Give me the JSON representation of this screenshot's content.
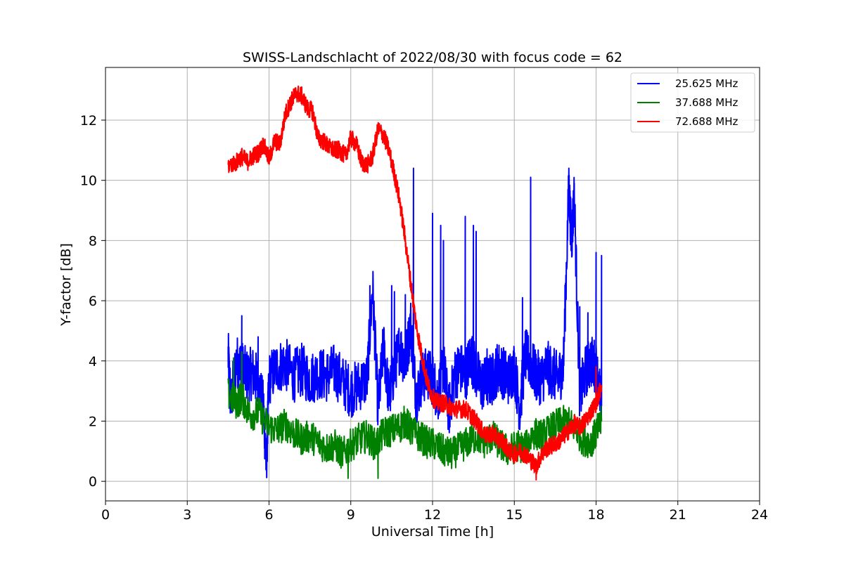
{
  "chart_data": {
    "type": "line",
    "title": "SWISS-Landschlacht of 2022/08/30 with focus code = 62",
    "xlabel": "Universal Time [h]",
    "ylabel": "Y-factor [dB]",
    "xlim": [
      0,
      24
    ],
    "ylim": [
      -0.65,
      13.75
    ],
    "xticks": [
      0,
      3,
      6,
      9,
      12,
      15,
      18,
      21,
      24
    ],
    "yticks": [
      0,
      2,
      4,
      6,
      8,
      10,
      12
    ],
    "grid": true,
    "legend": "top-right",
    "series": [
      {
        "name": "25.625 MHz",
        "color": "#0000ff",
        "x": [
          4.5,
          4.6,
          4.8,
          5.0,
          5.2,
          5.4,
          5.6,
          5.8,
          5.9,
          6.0,
          6.3,
          6.6,
          6.9,
          7.2,
          7.5,
          7.8,
          8.1,
          8.4,
          8.7,
          9.0,
          9.3,
          9.6,
          9.8,
          10.0,
          10.2,
          10.4,
          10.6,
          10.8,
          11.0,
          11.2,
          11.4,
          11.6,
          11.8,
          12.0,
          12.2,
          12.4,
          12.6,
          12.8,
          13.0,
          13.2,
          13.4,
          13.6,
          13.8,
          14.0,
          14.2,
          14.4,
          14.6,
          14.8,
          15.0,
          15.2,
          15.4,
          15.6,
          15.8,
          16.0,
          16.2,
          16.4,
          16.6,
          16.8,
          17.0,
          17.1,
          17.2,
          17.4,
          17.6,
          17.8,
          18.0,
          18.2
        ],
        "y": [
          4.2,
          2.6,
          4.0,
          3.8,
          3.5,
          3.6,
          3.3,
          2.4,
          0.5,
          3.4,
          3.8,
          3.9,
          3.5,
          3.7,
          3.4,
          3.6,
          3.5,
          3.7,
          3.3,
          3.0,
          3.2,
          3.4,
          6.5,
          2.4,
          4.5,
          2.8,
          3.7,
          4.5,
          3.9,
          5.2,
          2.8,
          3.4,
          3.6,
          3.4,
          2.8,
          3.9,
          2.3,
          3.5,
          3.8,
          3.5,
          4.2,
          3.6,
          3.2,
          3.3,
          3.4,
          3.8,
          3.6,
          3.4,
          3.8,
          2.4,
          4.2,
          3.9,
          3.5,
          3.4,
          3.8,
          3.6,
          3.4,
          3.8,
          9.8,
          8.0,
          9.5,
          2.8,
          3.6,
          4.0,
          3.8,
          2.5
        ],
        "spikes": [
          [
            5.0,
            5.5
          ],
          [
            5.6,
            4.8
          ],
          [
            5.9,
            0.5
          ],
          [
            9.7,
            6.5
          ],
          [
            10.5,
            6.5
          ],
          [
            10.6,
            6.3
          ],
          [
            11.0,
            6.2
          ],
          [
            11.3,
            10.4
          ],
          [
            12.0,
            8.9
          ],
          [
            12.3,
            8.5
          ],
          [
            12.4,
            8.0
          ],
          [
            13.2,
            8.8
          ],
          [
            13.5,
            8.5
          ],
          [
            13.6,
            8.3
          ],
          [
            14.0,
            4.4
          ],
          [
            15.3,
            6.1
          ],
          [
            15.6,
            10.1
          ],
          [
            17.0,
            10.4
          ],
          [
            17.2,
            9.9
          ],
          [
            17.4,
            5.8
          ],
          [
            17.7,
            5.6
          ],
          [
            18.0,
            7.6
          ],
          [
            18.2,
            7.5
          ]
        ]
      },
      {
        "name": "37.688 MHz",
        "color": "#008000",
        "x": [
          4.5,
          4.8,
          5.0,
          5.3,
          5.6,
          6.0,
          6.3,
          6.6,
          6.9,
          7.2,
          7.5,
          7.8,
          8.1,
          8.4,
          8.7,
          9.0,
          9.3,
          9.6,
          9.9,
          10.2,
          10.5,
          10.8,
          11.0,
          11.2,
          11.5,
          11.8,
          12.1,
          12.4,
          12.7,
          13.0,
          13.3,
          13.6,
          13.9,
          14.2,
          14.5,
          14.8,
          15.1,
          15.4,
          15.7,
          16.0,
          16.3,
          16.6,
          16.9,
          17.2,
          17.5,
          17.8,
          18.0,
          18.2
        ],
        "y": [
          2.9,
          2.6,
          2.8,
          2.2,
          2.3,
          1.8,
          1.7,
          1.9,
          1.6,
          1.4,
          1.5,
          1.3,
          1.1,
          1.2,
          0.9,
          1.2,
          1.4,
          1.5,
          1.2,
          1.6,
          1.7,
          1.8,
          2.0,
          1.7,
          1.5,
          1.3,
          1.2,
          1.0,
          0.9,
          1.1,
          1.3,
          1.5,
          1.3,
          1.5,
          1.2,
          1.0,
          1.2,
          1.1,
          1.6,
          1.5,
          1.7,
          1.9,
          2.0,
          1.8,
          1.4,
          1.3,
          1.6,
          2.0
        ],
        "spikes": [
          [
            4.7,
            4.1
          ],
          [
            5.0,
            4.3
          ],
          [
            8.9,
            0.1
          ],
          [
            10.0,
            0.1
          ]
        ]
      },
      {
        "name": "72.688 MHz",
        "color": "#ff0000",
        "x": [
          4.5,
          4.8,
          5.0,
          5.2,
          5.4,
          5.6,
          5.8,
          6.0,
          6.2,
          6.4,
          6.6,
          6.8,
          7.0,
          7.2,
          7.4,
          7.6,
          7.8,
          8.0,
          8.2,
          8.4,
          8.6,
          8.8,
          9.0,
          9.2,
          9.4,
          9.6,
          9.8,
          10.0,
          10.2,
          10.4,
          10.6,
          10.8,
          11.0,
          11.2,
          11.4,
          11.6,
          11.8,
          12.0,
          12.2,
          12.4,
          12.6,
          12.8,
          13.0,
          13.2,
          13.4,
          13.6,
          13.8,
          14.0,
          14.2,
          14.4,
          14.6,
          14.8,
          15.0,
          15.2,
          15.4,
          15.6,
          15.8,
          16.0,
          16.2,
          16.4,
          16.6,
          16.8,
          17.0,
          17.2,
          17.4,
          17.6,
          17.8,
          18.0,
          18.2
        ],
        "y": [
          10.5,
          10.6,
          10.8,
          10.6,
          10.8,
          10.9,
          11.2,
          10.7,
          11.3,
          11.2,
          12.2,
          12.6,
          12.9,
          12.8,
          12.4,
          12.3,
          11.4,
          11.3,
          11.1,
          11.0,
          11.0,
          10.8,
          11.4,
          11.2,
          10.6,
          10.5,
          10.8,
          11.7,
          11.5,
          11.0,
          10.2,
          9.3,
          8.0,
          6.6,
          5.2,
          4.2,
          3.3,
          2.8,
          2.6,
          2.6,
          2.5,
          2.4,
          2.4,
          2.4,
          2.2,
          2.0,
          1.7,
          1.5,
          1.6,
          1.4,
          1.3,
          1.0,
          0.9,
          1.0,
          0.9,
          0.7,
          0.5,
          0.9,
          1.1,
          1.2,
          1.3,
          1.5,
          1.7,
          1.9,
          1.8,
          2.0,
          2.3,
          2.6,
          3.2
        ],
        "spikes": [
          [
            15.8,
            0.05
          ],
          [
            18.0,
            3.8
          ]
        ]
      }
    ]
  }
}
